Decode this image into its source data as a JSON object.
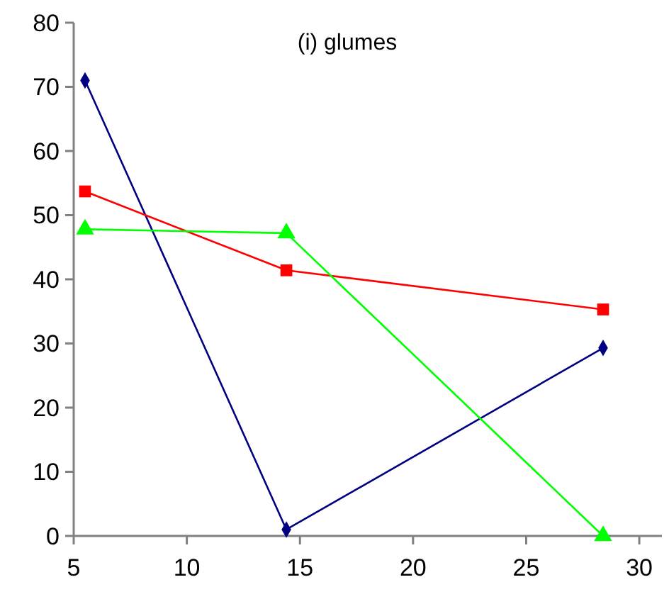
{
  "chart_data": {
    "type": "line",
    "title": "(i) glumes",
    "x": [
      5.5,
      14.4,
      28.4
    ],
    "series": [
      {
        "color": "#000080",
        "marker": "diamond",
        "values": [
          71,
          1,
          29.3
        ]
      },
      {
        "color": "#ff0000",
        "marker": "square",
        "values": [
          53.7,
          41.4,
          35.3
        ]
      },
      {
        "color": "#00ff00",
        "marker": "triangle",
        "values": [
          47.8,
          47.2,
          0
        ]
      }
    ],
    "xlim": [
      5,
      31
    ],
    "xticks": [
      5,
      10,
      15,
      20,
      25,
      30
    ],
    "ylim": [
      0,
      80
    ],
    "yticks": [
      0,
      10,
      20,
      30,
      40,
      50,
      60,
      70,
      80
    ]
  }
}
